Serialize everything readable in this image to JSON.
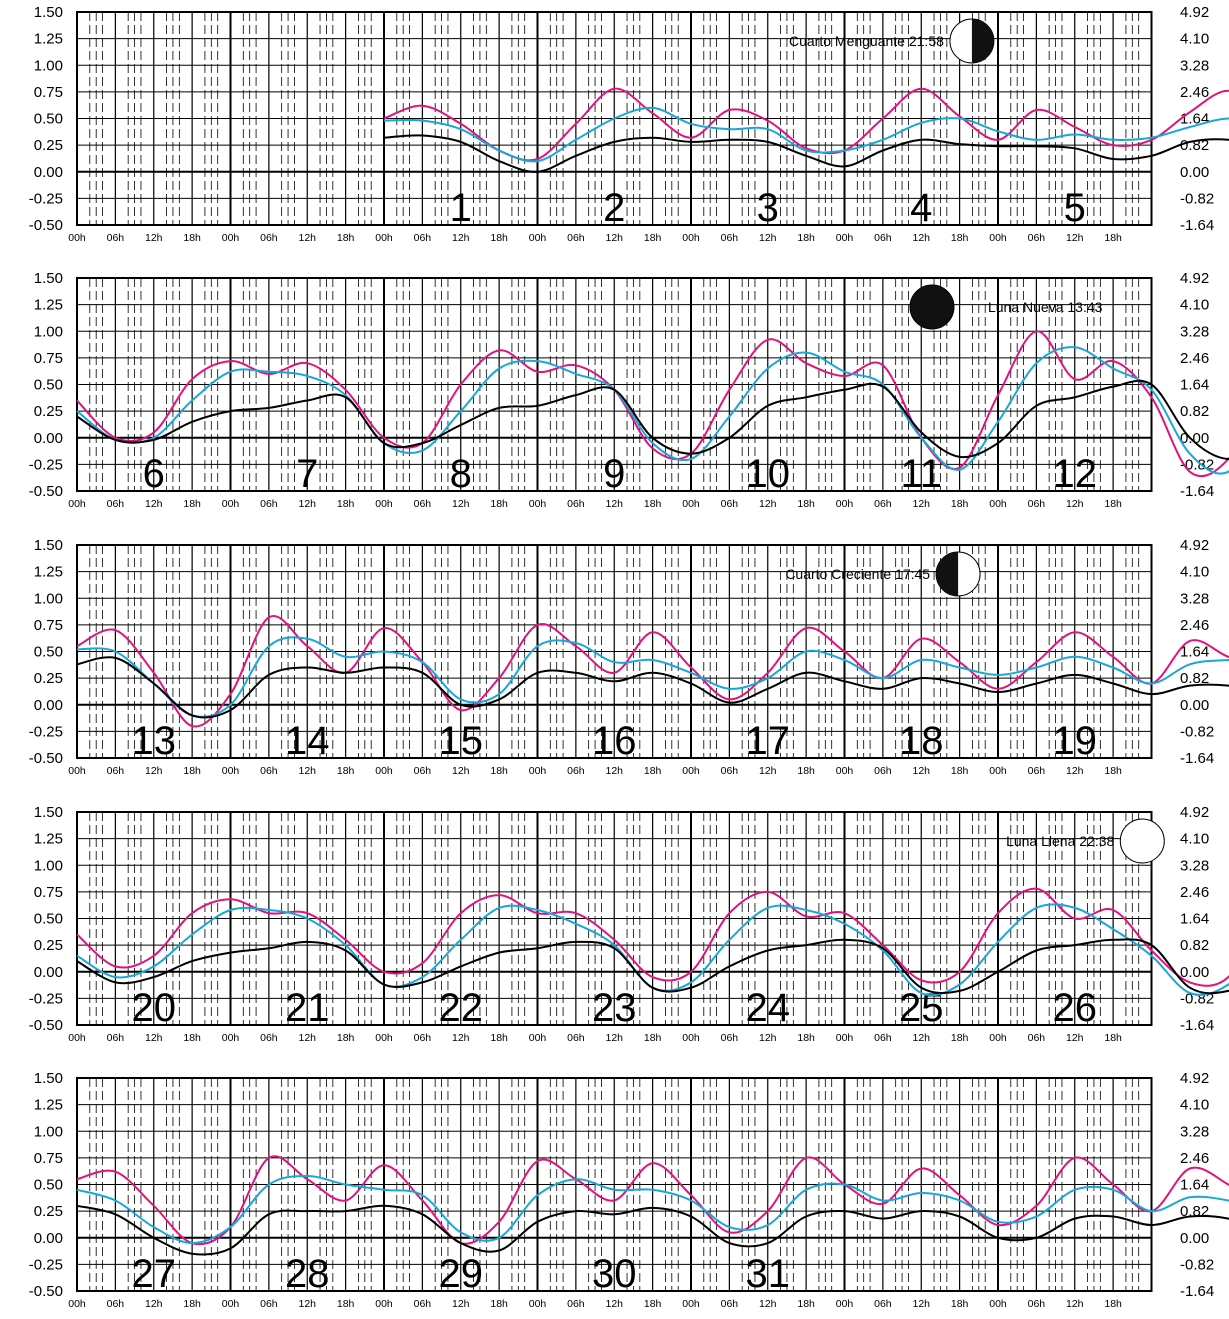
{
  "chart_data": {
    "type": "line",
    "x_tick_labels": [
      "00h",
      "06h",
      "12h",
      "18h"
    ],
    "y_left_ticks": [
      "1.50",
      "1.25",
      "1.00",
      "0.75",
      "0.50",
      "0.25",
      "0.00",
      "-0.25",
      "-0.50"
    ],
    "y_right_ticks": [
      "4.92",
      "4.10",
      "3.28",
      "2.46",
      "1.64",
      "0.82",
      "0.00",
      "-0.82",
      "-1.64"
    ],
    "ylim": [
      -0.5,
      1.5
    ],
    "colors": {
      "magenta": "#e0147c",
      "cyan": "#1aa7d8",
      "black": "#000000",
      "grid": "#000000"
    },
    "panels": [
      {
        "days": [
          "1",
          "2",
          "3",
          "4",
          "5"
        ],
        "start_slot": 2,
        "phase": {
          "label": "Cuarto Menguante 21:58",
          "icon": "last-quarter-moon-icon",
          "slot": 5.83
        },
        "series": [
          {
            "color": "magenta",
            "start": 2.0,
            "points": [
              0.5,
              0.62,
              0.45,
              0.2,
              0.12,
              0.45,
              0.78,
              0.55,
              0.32,
              0.58,
              0.48,
              0.22,
              0.2,
              0.5,
              0.78,
              0.52,
              0.3,
              0.58,
              0.42,
              0.25,
              0.3,
              0.56,
              0.76,
              0.55,
              0.35,
              0.58,
              0.44,
              0.24,
              0.22,
              0.48,
              0.74,
              0.52,
              0.15,
              0.06,
              0.4,
              0.62,
              0.5,
              0.6,
              0.7,
              0.35
            ]
          },
          {
            "color": "cyan",
            "start": 2.0,
            "points": [
              0.48,
              0.48,
              0.4,
              0.2,
              0.1,
              0.3,
              0.5,
              0.6,
              0.45,
              0.4,
              0.4,
              0.2,
              0.2,
              0.3,
              0.46,
              0.5,
              0.38,
              0.3,
              0.35,
              0.3,
              0.32,
              0.42,
              0.5,
              0.45,
              0.3,
              0.3,
              0.35,
              0.4,
              0.42,
              0.46,
              0.5,
              0.4,
              0.18,
              0.12,
              0.25,
              0.45,
              0.52,
              0.5,
              0.48,
              0.2
            ]
          },
          {
            "color": "black",
            "start": 2.0,
            "points": [
              0.32,
              0.34,
              0.28,
              0.1,
              0.0,
              0.15,
              0.28,
              0.32,
              0.28,
              0.3,
              0.28,
              0.15,
              0.05,
              0.2,
              0.3,
              0.26,
              0.24,
              0.24,
              0.22,
              0.12,
              0.15,
              0.28,
              0.3,
              0.22,
              0.2,
              0.18,
              0.2,
              0.16,
              0.2,
              0.3,
              0.35,
              0.25,
              0.1,
              0.05,
              0.15,
              0.2,
              0.22,
              0.32,
              0.38,
              0.22
            ]
          }
        ]
      },
      {
        "days": [
          "6",
          "7",
          "8",
          "9",
          "10",
          "11",
          "12"
        ],
        "start_slot": 0,
        "phase": {
          "label": "Luna Nueva 13:43",
          "icon": "new-moon-icon",
          "slot": 5.57
        },
        "series": [
          {
            "color": "magenta",
            "start": 0.0,
            "points": [
              0.35,
              0.0,
              0.05,
              0.55,
              0.72,
              0.6,
              0.7,
              0.45,
              0.0,
              -0.05,
              0.5,
              0.82,
              0.62,
              0.68,
              0.45,
              -0.1,
              -0.15,
              0.45,
              0.92,
              0.7,
              0.58,
              0.68,
              0.0,
              -0.28,
              0.4,
              1.0,
              0.55,
              0.72,
              0.38,
              -0.32,
              -0.2,
              0.45,
              1.0,
              0.5,
              0.75,
              0.3,
              -0.36,
              -0.2,
              0.45,
              0.98,
              0.45,
              0.78,
              0.32,
              -0.32,
              -0.18,
              0.78,
              0.9,
              0.5,
              0.6
            ]
          },
          {
            "color": "cyan",
            "start": 0.0,
            "points": [
              0.25,
              -0.02,
              0.0,
              0.35,
              0.62,
              0.62,
              0.58,
              0.4,
              -0.05,
              -0.12,
              0.25,
              0.65,
              0.72,
              0.6,
              0.45,
              -0.05,
              -0.2,
              0.2,
              0.65,
              0.8,
              0.62,
              0.5,
              0.0,
              -0.3,
              0.15,
              0.7,
              0.85,
              0.65,
              0.45,
              -0.15,
              -0.32,
              0.2,
              0.72,
              0.85,
              0.62,
              0.45,
              -0.18,
              -0.32,
              0.18,
              0.7,
              0.82,
              0.58,
              0.45,
              -0.1,
              -0.15,
              0.45,
              0.72,
              0.7,
              0.55
            ]
          },
          {
            "color": "black",
            "start": 0.0,
            "points": [
              0.2,
              -0.02,
              -0.02,
              0.15,
              0.25,
              0.28,
              0.35,
              0.38,
              -0.05,
              -0.05,
              0.12,
              0.28,
              0.3,
              0.4,
              0.45,
              0.0,
              -0.15,
              0.0,
              0.3,
              0.38,
              0.45,
              0.48,
              0.05,
              -0.18,
              -0.05,
              0.3,
              0.38,
              0.48,
              0.5,
              0.0,
              -0.2,
              -0.05,
              0.3,
              0.38,
              0.45,
              0.5,
              -0.05,
              -0.2,
              -0.05,
              0.3,
              0.38,
              0.45,
              0.5,
              0.0,
              -0.15,
              0.0,
              0.35,
              0.35,
              0.42
            ]
          }
        ]
      },
      {
        "days": [
          "13",
          "14",
          "15",
          "16",
          "17",
          "18",
          "19"
        ],
        "start_slot": 0,
        "phase": {
          "label": "Cuarto Creciente 17:45",
          "icon": "first-quarter-moon-icon",
          "slot": 5.74
        },
        "series": [
          {
            "color": "magenta",
            "start": 0.0,
            "points": [
              0.55,
              0.7,
              0.3,
              -0.2,
              0.1,
              0.82,
              0.55,
              0.3,
              0.72,
              0.4,
              -0.05,
              0.25,
              0.75,
              0.55,
              0.3,
              0.68,
              0.35,
              0.05,
              0.3,
              0.72,
              0.5,
              0.25,
              0.62,
              0.4,
              0.15,
              0.4,
              0.68,
              0.45,
              0.2,
              0.6,
              0.45,
              0.35,
              0.45,
              0.65,
              0.42,
              0.1,
              0.55,
              0.55,
              0.5,
              0.6,
              0.35,
              0.05,
              0.2,
              0.58,
              0.62,
              0.55,
              0.55,
              0.5,
              0.3
            ]
          },
          {
            "color": "cyan",
            "start": 0.0,
            "points": [
              0.52,
              0.5,
              0.2,
              -0.1,
              0.0,
              0.55,
              0.62,
              0.45,
              0.5,
              0.4,
              0.05,
              0.1,
              0.55,
              0.58,
              0.4,
              0.42,
              0.3,
              0.15,
              0.25,
              0.5,
              0.42,
              0.25,
              0.42,
              0.35,
              0.28,
              0.35,
              0.45,
              0.35,
              0.2,
              0.38,
              0.42,
              0.42,
              0.44,
              0.45,
              0.35,
              0.15,
              0.3,
              0.48,
              0.48,
              0.48,
              0.38,
              0.1,
              0.15,
              0.45,
              0.55,
              0.52,
              0.48,
              0.4,
              0.15
            ]
          },
          {
            "color": "black",
            "start": 0.0,
            "points": [
              0.38,
              0.44,
              0.2,
              -0.1,
              -0.05,
              0.28,
              0.35,
              0.3,
              0.35,
              0.3,
              0.0,
              0.05,
              0.3,
              0.3,
              0.22,
              0.3,
              0.2,
              0.02,
              0.15,
              0.3,
              0.22,
              0.15,
              0.25,
              0.2,
              0.12,
              0.2,
              0.28,
              0.2,
              0.1,
              0.18,
              0.18,
              0.12,
              0.2,
              0.28,
              0.18,
              0.0,
              0.12,
              0.15,
              0.18,
              0.28,
              0.15,
              -0.05,
              0.0,
              0.1,
              0.15,
              0.18,
              0.22,
              0.28,
              0.2
            ]
          }
        ]
      },
      {
        "days": [
          "20",
          "21",
          "22",
          "23",
          "24",
          "25",
          "26"
        ],
        "start_slot": 0,
        "phase": {
          "label": "Luna Llena 22:38",
          "icon": "full-moon-icon",
          "slot": 6.94
        },
        "series": [
          {
            "color": "magenta",
            "start": 0.0,
            "points": [
              0.35,
              0.05,
              0.15,
              0.55,
              0.68,
              0.55,
              0.55,
              0.3,
              0.0,
              0.08,
              0.55,
              0.72,
              0.55,
              0.55,
              0.3,
              -0.05,
              0.0,
              0.55,
              0.75,
              0.52,
              0.55,
              0.25,
              -0.08,
              0.0,
              0.55,
              0.78,
              0.5,
              0.58,
              0.2,
              -0.1,
              -0.05,
              0.55,
              0.8,
              0.45,
              0.6,
              0.2,
              -0.1,
              0.0,
              0.55,
              0.82,
              0.45,
              0.6,
              0.2,
              -0.1,
              0.0,
              0.6,
              0.8,
              0.4,
              0.58
            ]
          },
          {
            "color": "cyan",
            "start": 0.0,
            "points": [
              0.15,
              -0.05,
              0.05,
              0.35,
              0.58,
              0.58,
              0.5,
              0.25,
              -0.12,
              -0.05,
              0.3,
              0.6,
              0.58,
              0.45,
              0.25,
              -0.15,
              -0.1,
              0.3,
              0.6,
              0.58,
              0.45,
              0.2,
              -0.2,
              -0.12,
              0.28,
              0.6,
              0.6,
              0.4,
              0.15,
              -0.2,
              -0.12,
              0.28,
              0.6,
              0.6,
              0.35,
              0.12,
              -0.2,
              -0.1,
              0.3,
              0.6,
              0.6,
              0.35,
              0.12,
              -0.15,
              -0.1,
              0.3,
              0.6,
              0.55,
              0.48
            ]
          },
          {
            "color": "black",
            "start": 0.0,
            "points": [
              0.1,
              -0.1,
              -0.05,
              0.1,
              0.18,
              0.22,
              0.28,
              0.2,
              -0.12,
              -0.1,
              0.05,
              0.18,
              0.22,
              0.28,
              0.22,
              -0.15,
              -0.15,
              0.05,
              0.2,
              0.25,
              0.3,
              0.22,
              -0.15,
              -0.18,
              0.0,
              0.2,
              0.25,
              0.3,
              0.25,
              -0.15,
              -0.18,
              0.0,
              0.2,
              0.25,
              0.3,
              0.28,
              -0.15,
              -0.18,
              0.0,
              0.2,
              0.25,
              0.3,
              0.3,
              -0.1,
              -0.15,
              0.0,
              0.22,
              0.25,
              0.32
            ]
          }
        ]
      },
      {
        "days": [
          "27",
          "28",
          "29",
          "30",
          "31"
        ],
        "start_slot": 0,
        "phase": null,
        "series": [
          {
            "color": "magenta",
            "start": 0.0,
            "points": [
              0.55,
              0.62,
              0.3,
              -0.05,
              0.1,
              0.75,
              0.55,
              0.35,
              0.68,
              0.35,
              -0.05,
              0.15,
              0.72,
              0.55,
              0.35,
              0.7,
              0.4,
              0.05,
              0.25,
              0.75,
              0.5,
              0.32,
              0.65,
              0.4,
              0.12,
              0.3,
              0.75,
              0.5,
              0.25,
              0.65,
              0.5,
              0.25,
              0.45,
              0.75,
              0.5,
              0.2
            ]
          },
          {
            "color": "cyan",
            "start": 0.0,
            "points": [
              0.45,
              0.35,
              0.1,
              -0.05,
              0.1,
              0.5,
              0.58,
              0.5,
              0.45,
              0.4,
              0.05,
              0.0,
              0.4,
              0.55,
              0.45,
              0.45,
              0.35,
              0.1,
              0.12,
              0.45,
              0.5,
              0.35,
              0.42,
              0.35,
              0.15,
              0.2,
              0.45,
              0.45,
              0.25,
              0.38,
              0.35,
              0.25,
              0.3,
              0.48,
              0.38,
              0.15
            ]
          },
          {
            "color": "black",
            "start": 0.0,
            "points": [
              0.3,
              0.22,
              0.0,
              -0.15,
              -0.1,
              0.22,
              0.25,
              0.25,
              0.3,
              0.22,
              -0.05,
              -0.12,
              0.15,
              0.25,
              0.22,
              0.28,
              0.2,
              -0.05,
              -0.05,
              0.2,
              0.25,
              0.18,
              0.25,
              0.2,
              0.0,
              0.0,
              0.18,
              0.2,
              0.12,
              0.2,
              0.18,
              0.05,
              0.12,
              0.25,
              0.2,
              0.08
            ]
          }
        ]
      }
    ]
  }
}
